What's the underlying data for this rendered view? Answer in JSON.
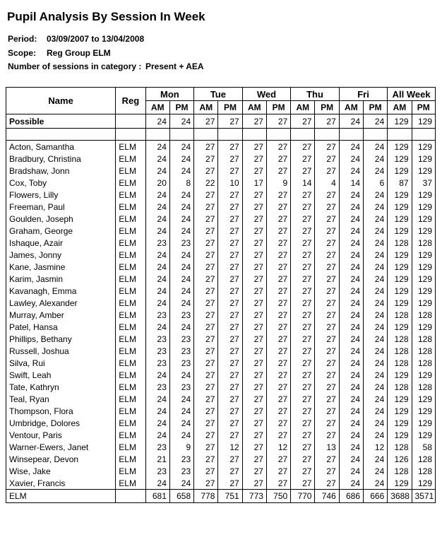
{
  "report": {
    "title": "Pupil Analysis By Session In Week",
    "period_label": "Period:",
    "period_value": "03/09/2007 to 13/04/2008",
    "scope_label": "Scope:",
    "scope_value": "Reg Group ELM",
    "category_label": "Number of sessions in category :",
    "category_value": "Present + AEA"
  },
  "table": {
    "headers": {
      "name": "Name",
      "reg": "Reg",
      "days": [
        "Mon",
        "Tue",
        "Wed",
        "Thu",
        "Fri",
        "All Week"
      ],
      "am": "AM",
      "pm": "PM"
    },
    "possible": {
      "label": "Possible",
      "reg": "",
      "values": [
        24,
        24,
        27,
        27,
        27,
        27,
        27,
        27,
        24,
        24,
        129,
        129
      ]
    },
    "rows": [
      {
        "name": "Acton, Samantha",
        "reg": "ELM",
        "values": [
          24,
          24,
          27,
          27,
          27,
          27,
          27,
          27,
          24,
          24,
          129,
          129
        ]
      },
      {
        "name": "Bradbury, Christina",
        "reg": "ELM",
        "values": [
          24,
          24,
          27,
          27,
          27,
          27,
          27,
          27,
          24,
          24,
          129,
          129
        ]
      },
      {
        "name": "Bradshaw, Jonn",
        "reg": "ELM",
        "values": [
          24,
          24,
          27,
          27,
          27,
          27,
          27,
          27,
          24,
          24,
          129,
          129
        ]
      },
      {
        "name": "Cox, Toby",
        "reg": "ELM",
        "values": [
          20,
          8,
          22,
          10,
          17,
          9,
          14,
          4,
          14,
          6,
          87,
          37
        ]
      },
      {
        "name": "Flowers, Lilly",
        "reg": "ELM",
        "values": [
          24,
          24,
          27,
          27,
          27,
          27,
          27,
          27,
          24,
          24,
          129,
          129
        ]
      },
      {
        "name": "Freeman, Paul",
        "reg": "ELM",
        "values": [
          24,
          24,
          27,
          27,
          27,
          27,
          27,
          27,
          24,
          24,
          129,
          129
        ]
      },
      {
        "name": "Goulden, Joseph",
        "reg": "ELM",
        "values": [
          24,
          24,
          27,
          27,
          27,
          27,
          27,
          27,
          24,
          24,
          129,
          129
        ]
      },
      {
        "name": "Graham, George",
        "reg": "ELM",
        "values": [
          24,
          24,
          27,
          27,
          27,
          27,
          27,
          27,
          24,
          24,
          129,
          129
        ]
      },
      {
        "name": "Ishaque, Azair",
        "reg": "ELM",
        "values": [
          23,
          23,
          27,
          27,
          27,
          27,
          27,
          27,
          24,
          24,
          128,
          128
        ]
      },
      {
        "name": "James, Jonny",
        "reg": "ELM",
        "values": [
          24,
          24,
          27,
          27,
          27,
          27,
          27,
          27,
          24,
          24,
          129,
          129
        ]
      },
      {
        "name": "Kane, Jasmine",
        "reg": "ELM",
        "values": [
          24,
          24,
          27,
          27,
          27,
          27,
          27,
          27,
          24,
          24,
          129,
          129
        ]
      },
      {
        "name": "Karim, Jasmin",
        "reg": "ELM",
        "values": [
          24,
          24,
          27,
          27,
          27,
          27,
          27,
          27,
          24,
          24,
          129,
          129
        ]
      },
      {
        "name": "Kavanagh, Emma",
        "reg": "ELM",
        "values": [
          24,
          24,
          27,
          27,
          27,
          27,
          27,
          27,
          24,
          24,
          129,
          129
        ]
      },
      {
        "name": "Lawley, Alexander",
        "reg": "ELM",
        "values": [
          24,
          24,
          27,
          27,
          27,
          27,
          27,
          27,
          24,
          24,
          129,
          129
        ]
      },
      {
        "name": "Murray, Amber",
        "reg": "ELM",
        "values": [
          23,
          23,
          27,
          27,
          27,
          27,
          27,
          27,
          24,
          24,
          128,
          128
        ]
      },
      {
        "name": "Patel, Hansa",
        "reg": "ELM",
        "values": [
          24,
          24,
          27,
          27,
          27,
          27,
          27,
          27,
          24,
          24,
          129,
          129
        ]
      },
      {
        "name": "Phillips, Bethany",
        "reg": "ELM",
        "values": [
          23,
          23,
          27,
          27,
          27,
          27,
          27,
          27,
          24,
          24,
          128,
          128
        ]
      },
      {
        "name": "Russell, Joshua",
        "reg": "ELM",
        "values": [
          23,
          23,
          27,
          27,
          27,
          27,
          27,
          27,
          24,
          24,
          128,
          128
        ]
      },
      {
        "name": "Silva, Rui",
        "reg": "ELM",
        "values": [
          23,
          23,
          27,
          27,
          27,
          27,
          27,
          27,
          24,
          24,
          128,
          128
        ]
      },
      {
        "name": "Swift, Leah",
        "reg": "ELM",
        "values": [
          24,
          24,
          27,
          27,
          27,
          27,
          27,
          27,
          24,
          24,
          129,
          129
        ]
      },
      {
        "name": "Tate, Kathryn",
        "reg": "ELM",
        "values": [
          23,
          23,
          27,
          27,
          27,
          27,
          27,
          27,
          24,
          24,
          128,
          128
        ]
      },
      {
        "name": "Teal, Ryan",
        "reg": "ELM",
        "values": [
          24,
          24,
          27,
          27,
          27,
          27,
          27,
          27,
          24,
          24,
          129,
          129
        ]
      },
      {
        "name": "Thompson, Flora",
        "reg": "ELM",
        "values": [
          24,
          24,
          27,
          27,
          27,
          27,
          27,
          27,
          24,
          24,
          129,
          129
        ]
      },
      {
        "name": "Umbridge, Dolores",
        "reg": "ELM",
        "values": [
          24,
          24,
          27,
          27,
          27,
          27,
          27,
          27,
          24,
          24,
          129,
          129
        ]
      },
      {
        "name": "Ventour, Paris",
        "reg": "ELM",
        "values": [
          24,
          24,
          27,
          27,
          27,
          27,
          27,
          27,
          24,
          24,
          129,
          129
        ]
      },
      {
        "name": "Warner-Ewers, Janet",
        "reg": "ELM",
        "values": [
          23,
          9,
          27,
          12,
          27,
          12,
          27,
          13,
          24,
          12,
          128,
          58
        ]
      },
      {
        "name": "Winsepear, Devon",
        "reg": "ELM",
        "values": [
          21,
          23,
          27,
          27,
          27,
          27,
          27,
          27,
          24,
          24,
          126,
          128
        ]
      },
      {
        "name": "Wise, Jake",
        "reg": "ELM",
        "values": [
          23,
          23,
          27,
          27,
          27,
          27,
          27,
          27,
          24,
          24,
          128,
          128
        ]
      },
      {
        "name": "Xavier, Francis",
        "reg": "ELM",
        "values": [
          24,
          24,
          27,
          27,
          27,
          27,
          27,
          27,
          24,
          24,
          129,
          129
        ]
      }
    ],
    "total": {
      "label": "ELM",
      "reg": "",
      "values": [
        681,
        658,
        778,
        751,
        773,
        750,
        770,
        746,
        686,
        666,
        3688,
        3571
      ]
    }
  }
}
